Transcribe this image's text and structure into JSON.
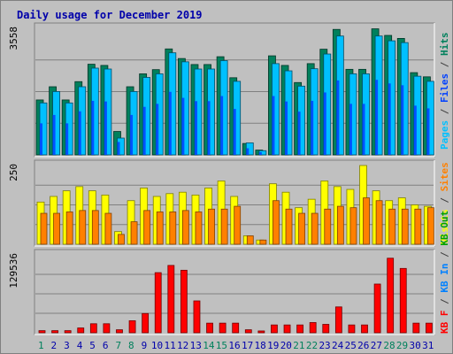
{
  "title": "Daily usage for December 2019",
  "colors": {
    "bg": "#c0c0c0",
    "panel": "#c0c0c0",
    "title": "#0000aa",
    "hits": "#00805c",
    "files": "#0040ff",
    "pages": "#00c0ff",
    "visits": "#ffff00",
    "sites": "#ff8000",
    "kbin": "#0080ff",
    "kbout": "#00a000",
    "kbf": "#ff0000",
    "weekend": "#00805c",
    "weekday": "#0000aa"
  },
  "legend_right": {
    "top": [
      {
        "text": "Pages",
        "color": "#00c0ff"
      },
      {
        "text": " / ",
        "color": "#404040"
      },
      {
        "text": "Files",
        "color": "#0040ff"
      },
      {
        "text": " / ",
        "color": "#404040"
      },
      {
        "text": "Hits",
        "color": "#00805c"
      }
    ],
    "middle": [
      {
        "text": "Visits",
        "color": "#ffff00"
      },
      {
        "text": " / ",
        "color": "#404040"
      },
      {
        "text": "Sites",
        "color": "#ff8000"
      }
    ],
    "bottom": [
      {
        "text": "KB F",
        "color": "#ff0000"
      },
      {
        "text": " / ",
        "color": "#404040"
      },
      {
        "text": "KB In",
        "color": "#0080ff"
      },
      {
        "text": " / ",
        "color": "#404040"
      },
      {
        "text": "KB Out",
        "color": "#00a000"
      }
    ]
  },
  "chart_data": {
    "type": "bar",
    "title": "Daily usage for December 2019",
    "categories": [
      "1",
      "2",
      "3",
      "4",
      "5",
      "6",
      "7",
      "8",
      "9",
      "10",
      "11",
      "12",
      "13",
      "14",
      "15",
      "16",
      "17",
      "18",
      "19",
      "20",
      "21",
      "22",
      "23",
      "24",
      "25",
      "26",
      "27",
      "28",
      "29",
      "30",
      "31"
    ],
    "weekend_days": [
      "1",
      "7",
      "8",
      "14",
      "15",
      "21",
      "22",
      "28",
      "29"
    ],
    "panels": [
      {
        "name": "hits-files-pages",
        "ymax": 3558,
        "ymax_label": "3558",
        "series": [
          {
            "name": "Hits",
            "values": [
              1830,
              2270,
              1830,
              2440,
              3020,
              2980,
              780,
              2270,
              2700,
              2840,
              3530,
              3210,
              3010,
              3010,
              3270,
              2570,
              380,
              160,
              3300,
              2980,
              2410,
              3040,
              3520,
              4180,
              2850,
              2850,
              4200,
              3980,
              3880,
              2740,
              2600
            ]
          },
          {
            "name": "Files",
            "values": [
              1050,
              1330,
              1050,
              1450,
              1800,
              1780,
              430,
              1330,
              1600,
              1700,
              2100,
              1900,
              1790,
              1790,
              1960,
              1530,
              220,
              90,
              1960,
              1780,
              1440,
              1800,
              2080,
              2480,
              1700,
              1700,
              2500,
              2380,
              2320,
              1640,
              1550
            ]
          },
          {
            "name": "Pages",
            "values": [
              1730,
              2110,
              1730,
              2270,
              2890,
              2860,
              560,
              2110,
              2580,
              2700,
              3400,
              3100,
              2860,
              2860,
              3140,
              2450,
              400,
              140,
              3040,
              2800,
              2290,
              2870,
              3360,
              3960,
              2700,
              2700,
              3960,
              3800,
              3740,
              2620,
              2450
            ]
          }
        ]
      },
      {
        "name": "visits-sites",
        "ymax": 250,
        "ymax_label": "250",
        "series": [
          {
            "name": "Visits",
            "values": [
              150,
              170,
              190,
              205,
              190,
              175,
              45,
              155,
              200,
              170,
              180,
              185,
              175,
              200,
              225,
              170,
              30,
              15,
              215,
              185,
              130,
              160,
              225,
              205,
              195,
              280,
              190,
              155,
              165,
              140,
              135
            ]
          },
          {
            "name": "Sites",
            "values": [
              110,
              110,
              115,
              120,
              120,
              110,
              35,
              80,
              120,
              115,
              115,
              120,
              115,
              125,
              125,
              135,
              30,
              15,
              155,
              125,
              110,
              110,
              125,
              135,
              130,
              165,
              155,
              125,
              125,
              125,
              130
            ]
          }
        ]
      },
      {
        "name": "kb",
        "ymax": 129536,
        "ymax_label": "129536",
        "series": [
          {
            "name": "KB F",
            "values": [
              3500,
              3500,
              3500,
              8000,
              15000,
              15000,
              5000,
              20000,
              32000,
              100000,
              112000,
              104000,
              53000,
              16000,
              16000,
              16000,
              5000,
              3000,
              13000,
              13000,
              13000,
              17000,
              14000,
              43000,
              13000,
              13000,
              81000,
              124000,
              107000,
              16000,
              16000
            ]
          }
        ]
      }
    ],
    "grid": true
  }
}
